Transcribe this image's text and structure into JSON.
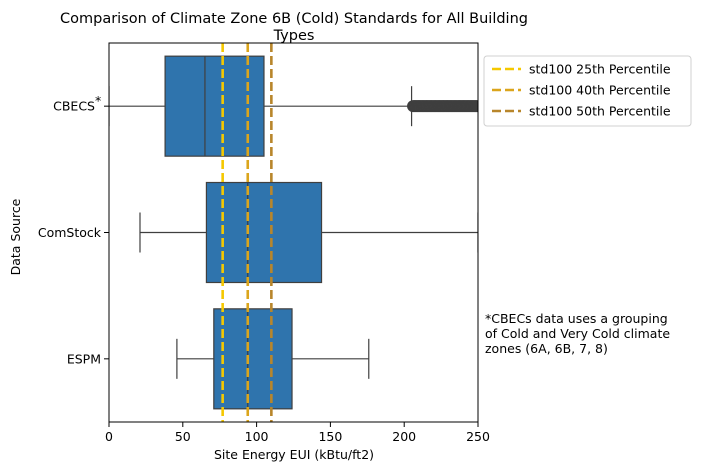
{
  "chart_data": {
    "type": "box",
    "orientation": "horizontal",
    "title_lines": [
      "Comparison of Climate Zone 6B (Cold) Standards for All Building",
      "Types"
    ],
    "xlabel": "Site Energy EUI (kBtu/ft2)",
    "ylabel": "Data Source",
    "xlim": [
      0,
      250
    ],
    "xticks": [
      0,
      50,
      100,
      150,
      200,
      250
    ],
    "box_color": "#2f74ad",
    "categories": [
      "CBECS",
      "ComStock",
      "ESPM"
    ],
    "category_markers": [
      "*",
      "",
      ""
    ],
    "boxes": [
      {
        "name": "CBECS",
        "whisker_low": 0,
        "q1": 38,
        "median": 65,
        "q3": 105,
        "whisker_high": 205,
        "outliers_from": 205,
        "outliers_to": 250
      },
      {
        "name": "ComStock",
        "whisker_low": 21,
        "q1": 66,
        "median": 94,
        "q3": 144,
        "whisker_high": 250
      },
      {
        "name": "ESPM",
        "whisker_low": 46,
        "q1": 71,
        "median": 94,
        "q3": 124,
        "whisker_high": 176
      }
    ],
    "reference_lines": [
      {
        "name": "std100 25th Percentile",
        "value": 77,
        "color": "#f5c800"
      },
      {
        "name": "std100 40th Percentile",
        "value": 94,
        "color": "#dba51c"
      },
      {
        "name": "std100 50th Percentile",
        "value": 110,
        "color": "#b8862b"
      }
    ],
    "legend_position": "outside upper right"
  },
  "footnote_lines": [
    "*CBECs data uses a grouping",
    "of Cold and Very Cold climate",
    "zones (6A, 6B, 7, 8)"
  ]
}
